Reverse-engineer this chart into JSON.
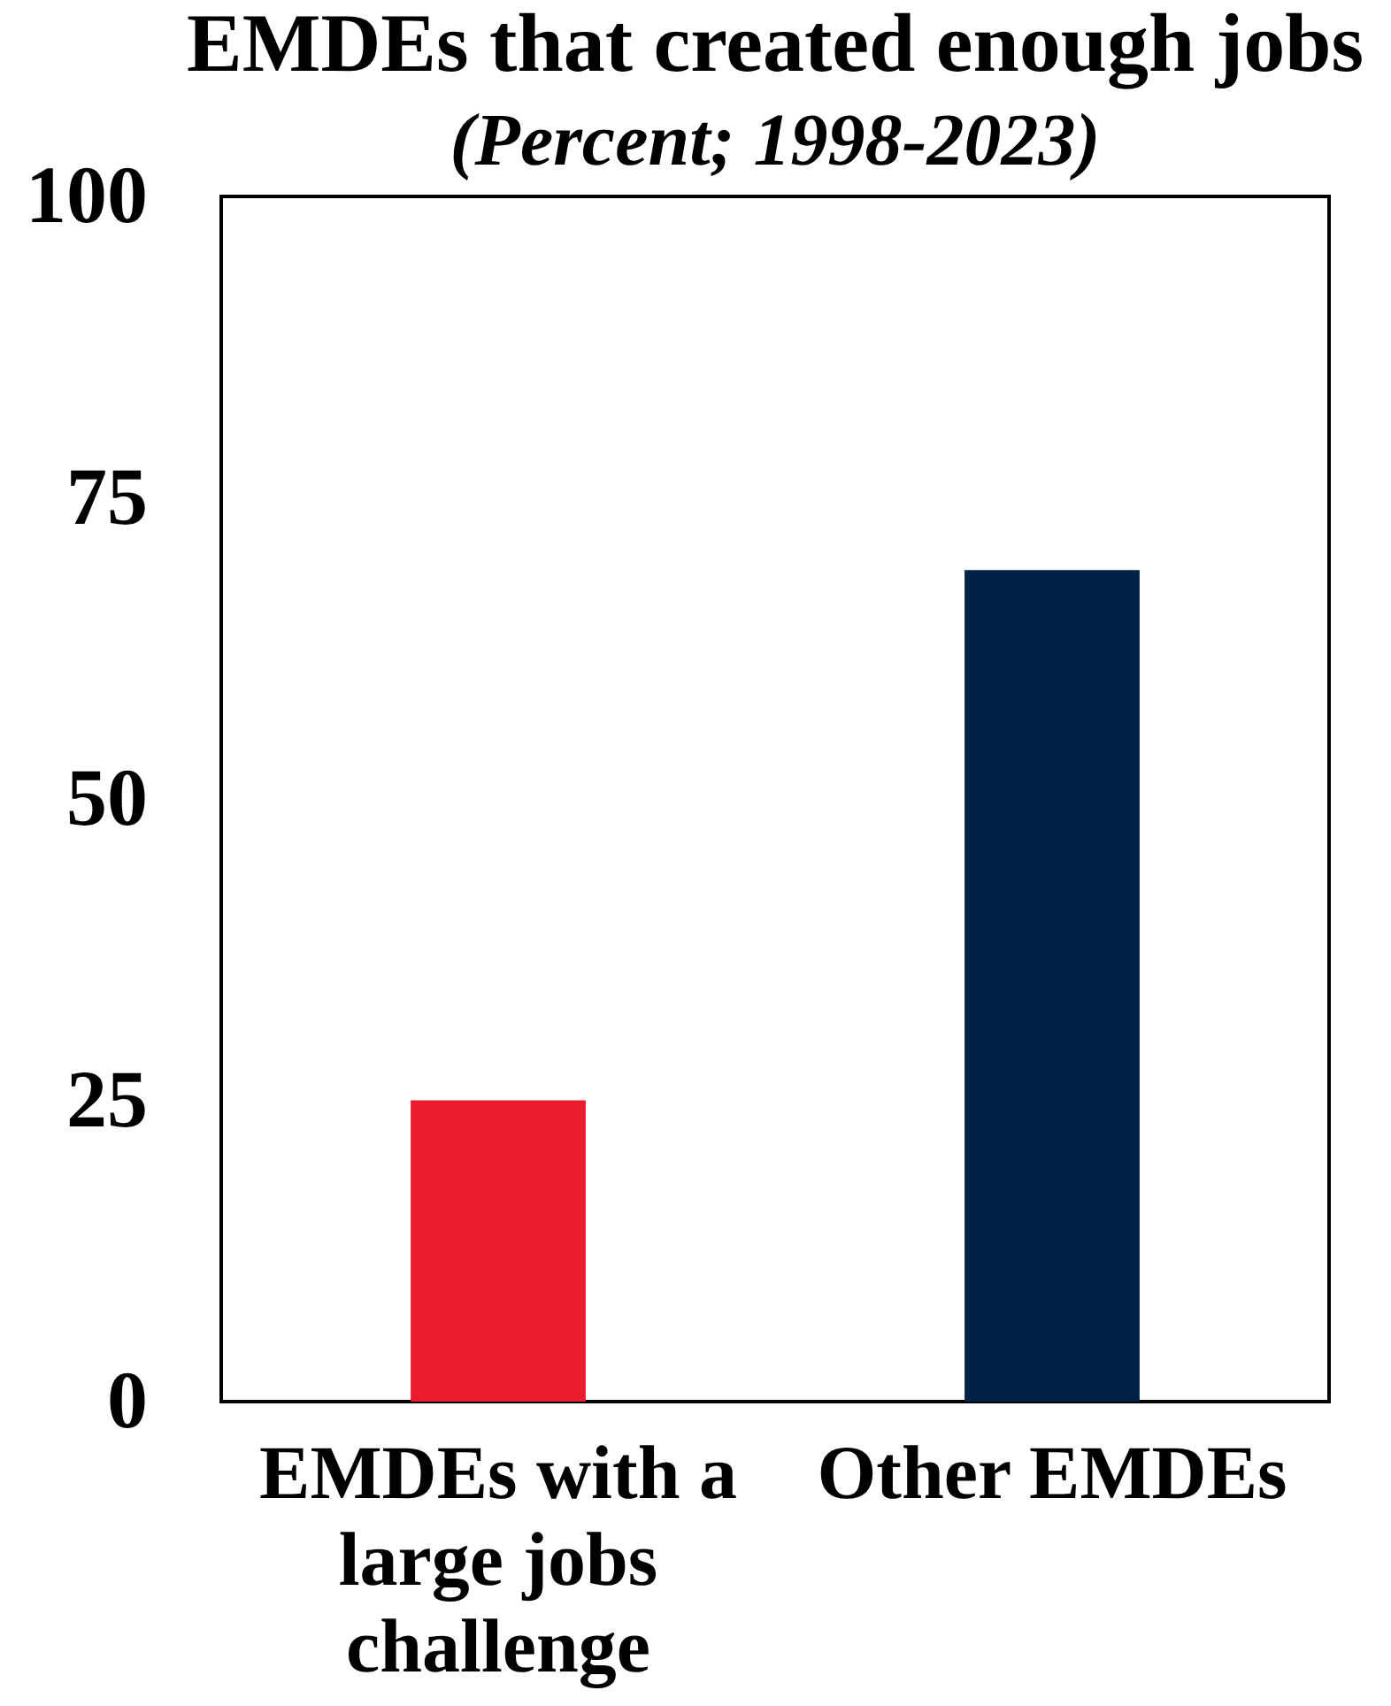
{
  "chart_data": {
    "type": "bar",
    "title": "EMDEs that created enough jobs",
    "subtitle": "(Percent; 1998-2023)",
    "categories": [
      "EMDEs with a large jobs challenge",
      "Other EMDEs"
    ],
    "values": [
      25,
      69
    ],
    "colors": [
      "#ec1c2e",
      "#002244"
    ],
    "ylim": [
      0,
      100
    ],
    "yticks": [
      0,
      25,
      50,
      75,
      100
    ]
  }
}
